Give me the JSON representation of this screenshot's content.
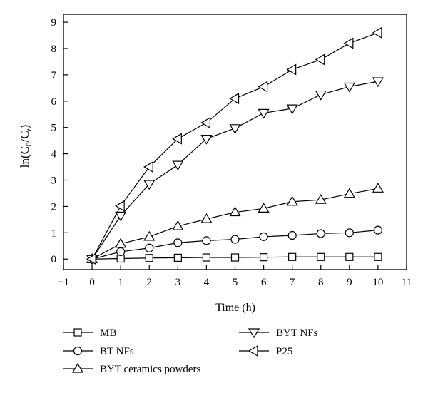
{
  "chart_data": {
    "type": "line",
    "title": "",
    "xlabel": "Time (h)",
    "ylabel": {
      "base": "ln(C",
      "sub1": "0",
      "mid": "/C",
      "sub2": "t",
      "end": ")"
    },
    "xlim": [
      -1,
      11
    ],
    "ylim": [
      -0.4,
      9.3
    ],
    "xticks": [
      -1,
      0,
      1,
      2,
      3,
      4,
      5,
      6,
      7,
      8,
      9,
      10,
      11
    ],
    "yticks": [
      0,
      1,
      2,
      3,
      4,
      5,
      6,
      7,
      8,
      9
    ],
    "x": [
      0,
      1,
      2,
      3,
      4,
      5,
      6,
      7,
      8,
      9,
      10
    ],
    "grid": false,
    "legend_position": "bottom",
    "series": [
      {
        "name": "MB",
        "marker": "square",
        "values": [
          0,
          0.02,
          0.04,
          0.05,
          0.06,
          0.06,
          0.07,
          0.08,
          0.08,
          0.08,
          0.08
        ]
      },
      {
        "name": "BT NFs",
        "marker": "circle",
        "values": [
          0,
          0.28,
          0.42,
          0.62,
          0.7,
          0.75,
          0.85,
          0.9,
          0.97,
          1.0,
          1.1
        ]
      },
      {
        "name": "BYT ceramics powders",
        "marker": "triangle-up",
        "values": [
          0,
          0.58,
          0.85,
          1.25,
          1.52,
          1.78,
          1.92,
          2.18,
          2.25,
          2.48,
          2.68
        ]
      },
      {
        "name": "BYT NFs",
        "marker": "triangle-down",
        "values": [
          0,
          1.65,
          2.85,
          3.58,
          4.57,
          4.97,
          5.55,
          5.72,
          6.25,
          6.55,
          6.75
        ]
      },
      {
        "name": "P25",
        "marker": "triangle-left",
        "values": [
          0,
          2.02,
          3.5,
          4.57,
          5.18,
          6.1,
          6.55,
          7.2,
          7.58,
          8.2,
          8.6
        ]
      }
    ]
  }
}
